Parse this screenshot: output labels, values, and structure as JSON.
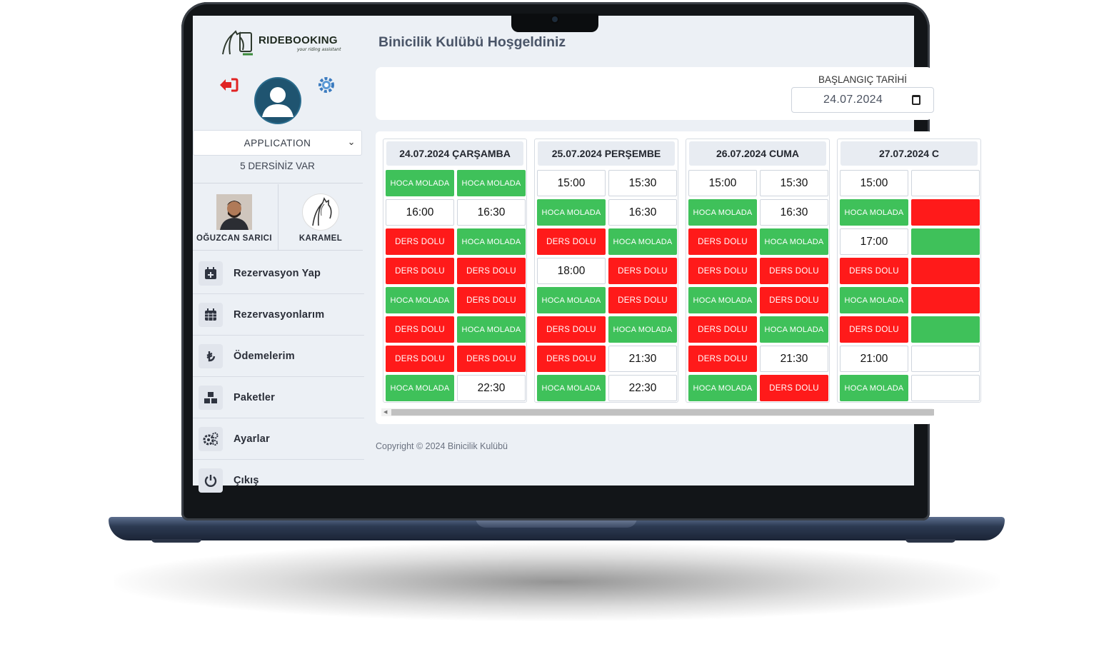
{
  "app": {
    "brand": "RIDEBOOKING",
    "tagline": "your riding assistant",
    "page_title": "Binicilik Kulübü Hoşgeldiniz"
  },
  "sidebar": {
    "select_value": "APPLICATION",
    "lesson_count": "5 DERSİNİZ VAR",
    "people": [
      {
        "name": "OĞUZCAN SARICI"
      },
      {
        "name": "KARAMEL"
      }
    ],
    "menu": [
      {
        "label": "Rezervasyon Yap",
        "icon": "calendar-plus-icon"
      },
      {
        "label": "Rezervasyonlarım",
        "icon": "calendar-grid-icon"
      },
      {
        "label": "Ödemelerim",
        "icon": "lira-icon"
      },
      {
        "label": "Paketler",
        "icon": "boxes-icon"
      },
      {
        "label": "Ayarlar",
        "icon": "gears-icon"
      },
      {
        "label": "Çıkış",
        "icon": "power-icon"
      }
    ]
  },
  "filter": {
    "label": "BAŞLANGIÇ TARİHİ",
    "value": "24.07.2024"
  },
  "days": [
    {
      "header": "24.07.2024 ÇARŞAMBA",
      "slots": [
        [
          "g",
          "HOCA MOLADA"
        ],
        [
          "g",
          "HOCA MOLADA"
        ],
        [
          "t",
          "16:00"
        ],
        [
          "t",
          "16:30"
        ],
        [
          "r",
          "DERS DOLU"
        ],
        [
          "g",
          "HOCA MOLADA"
        ],
        [
          "r",
          "DERS DOLU"
        ],
        [
          "r",
          "DERS DOLU"
        ],
        [
          "g",
          "HOCA MOLADA"
        ],
        [
          "r",
          "DERS DOLU"
        ],
        [
          "r",
          "DERS DOLU"
        ],
        [
          "g",
          "HOCA MOLADA"
        ],
        [
          "r",
          "DERS DOLU"
        ],
        [
          "r",
          "DERS DOLU"
        ],
        [
          "g",
          "HOCA MOLADA"
        ],
        [
          "t",
          "22:30"
        ]
      ]
    },
    {
      "header": "25.07.2024 PERŞEMBE",
      "slots": [
        [
          "t",
          "15:00"
        ],
        [
          "t",
          "15:30"
        ],
        [
          "g",
          "HOCA MOLADA"
        ],
        [
          "t",
          "16:30"
        ],
        [
          "r",
          "DERS DOLU"
        ],
        [
          "g",
          "HOCA MOLADA"
        ],
        [
          "t",
          "18:00"
        ],
        [
          "r",
          "DERS DOLU"
        ],
        [
          "g",
          "HOCA MOLADA"
        ],
        [
          "r",
          "DERS DOLU"
        ],
        [
          "r",
          "DERS DOLU"
        ],
        [
          "g",
          "HOCA MOLADA"
        ],
        [
          "r",
          "DERS DOLU"
        ],
        [
          "t",
          "21:30"
        ],
        [
          "g",
          "HOCA MOLADA"
        ],
        [
          "t",
          "22:30"
        ]
      ]
    },
    {
      "header": "26.07.2024 CUMA",
      "slots": [
        [
          "t",
          "15:00"
        ],
        [
          "t",
          "15:30"
        ],
        [
          "g",
          "HOCA MOLADA"
        ],
        [
          "t",
          "16:30"
        ],
        [
          "r",
          "DERS DOLU"
        ],
        [
          "g",
          "HOCA MOLADA"
        ],
        [
          "r",
          "DERS DOLU"
        ],
        [
          "r",
          "DERS DOLU"
        ],
        [
          "g",
          "HOCA MOLADA"
        ],
        [
          "r",
          "DERS DOLU"
        ],
        [
          "r",
          "DERS DOLU"
        ],
        [
          "g",
          "HOCA MOLADA"
        ],
        [
          "r",
          "DERS DOLU"
        ],
        [
          "t",
          "21:30"
        ],
        [
          "g",
          "HOCA MOLADA"
        ],
        [
          "r",
          "DERS DOLU"
        ]
      ]
    },
    {
      "header": "27.07.2024 C",
      "slots": [
        [
          "t",
          "15:00"
        ],
        [
          "t",
          ""
        ],
        [
          "g",
          "HOCA MOLADA"
        ],
        [
          "r",
          ""
        ],
        [
          "t",
          "17:00"
        ],
        [
          "g",
          ""
        ],
        [
          "r",
          "DERS DOLU"
        ],
        [
          "r",
          ""
        ],
        [
          "g",
          "HOCA MOLADA"
        ],
        [
          "r",
          ""
        ],
        [
          "r",
          "DERS DOLU"
        ],
        [
          "g",
          ""
        ],
        [
          "t",
          "21:00"
        ],
        [
          "t",
          ""
        ],
        [
          "g",
          "HOCA MOLADA"
        ],
        [
          "t",
          ""
        ]
      ]
    }
  ],
  "footer": {
    "copyright": "Copyright © 2024 Binicilik Kulübü"
  },
  "colors": {
    "available": "#ffffff",
    "break": "#3fc15a",
    "full": "#ff1a1a",
    "bg": "#ecf0f5"
  }
}
